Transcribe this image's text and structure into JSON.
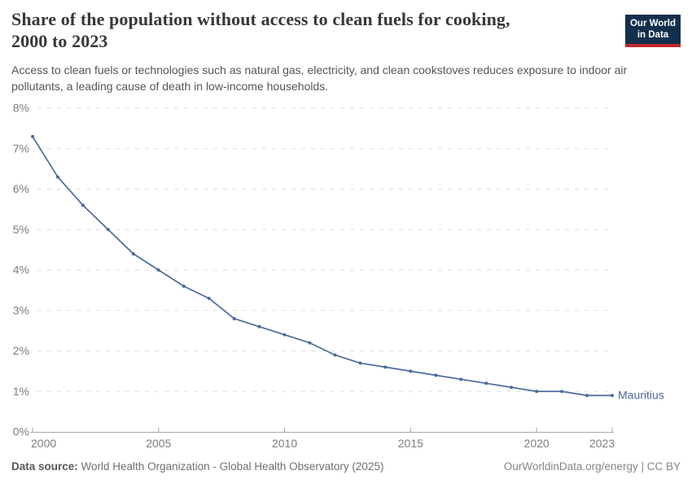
{
  "header": {
    "title_line1": "Share of the population without access to clean fuels for cooking,",
    "title_line2": "2000 to 2023",
    "subtitle": "Access to clean fuels or technologies such as natural gas, electricity, and clean cookstoves reduces exposure to indoor air pollutants, a leading cause of death in low-income households.",
    "logo": {
      "line1": "Our World",
      "line2": "in Data",
      "bg_color": "#132f4e",
      "stripe_color": "#c1272d"
    }
  },
  "chart_data": {
    "type": "line",
    "title": "Share of the population without access to clean fuels for cooking, 2000 to 2023",
    "x": [
      2000,
      2001,
      2002,
      2003,
      2004,
      2005,
      2006,
      2007,
      2008,
      2009,
      2010,
      2011,
      2012,
      2013,
      2014,
      2015,
      2016,
      2017,
      2018,
      2019,
      2020,
      2021,
      2022,
      2023
    ],
    "series": [
      {
        "name": "Mauritius",
        "color": "#4c6a9c",
        "values": [
          7.3,
          6.3,
          5.6,
          5.0,
          4.4,
          4.0,
          3.6,
          3.3,
          2.8,
          2.6,
          2.4,
          2.2,
          1.9,
          1.7,
          1.6,
          1.5,
          1.4,
          1.3,
          1.2,
          1.1,
          1.0,
          1.0,
          0.9,
          0.9
        ]
      }
    ],
    "xlabel": "",
    "ylabel": "",
    "ylim": [
      0,
      8
    ],
    "y_ticks": [
      0,
      1,
      2,
      3,
      4,
      5,
      6,
      7,
      8
    ],
    "y_tick_suffix": "%",
    "x_ticks": [
      2000,
      2005,
      2010,
      2015,
      2020,
      2023
    ],
    "grid": "horizontal-dashed",
    "legend_position": "end-of-line",
    "gridline_color": "#dedede",
    "axis_color": "#a7a7a7",
    "tick_label_color": "#7d7d7d"
  },
  "footer": {
    "source_label": "Data source:",
    "source_text": " World Health Organization - Global Health Observatory (2025)",
    "credit_link": "OurWorldinData.org/energy",
    "credit_sep": " | ",
    "credit_license": "CC BY"
  }
}
